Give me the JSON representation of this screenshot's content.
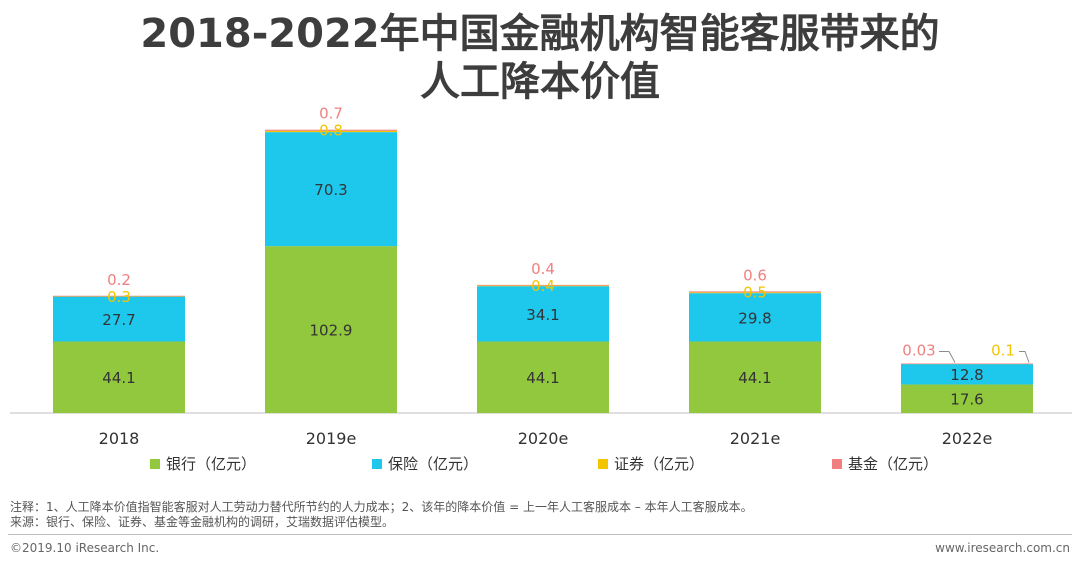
{
  "title": {
    "line1": "2018-2022年中国金融机构智能客服带来的",
    "line2": "人工降本价值"
  },
  "notes": {
    "note": "注释：1、人工降本价值指智能客服对人工劳动力替代所节约的人力成本；2、该年的降本价值 = 上一年人工客服成本 – 本年人工客服成本。",
    "source": "来源：银行、保险、证券、基金等金融机构的调研，艾瑞数据评估模型。"
  },
  "footer": {
    "copyright": "©2019.10 iResearch Inc.",
    "website": "www.iresearch.com.cn"
  },
  "chart_data": {
    "type": "bar",
    "stacked": true,
    "categories": [
      "2018",
      "2019e",
      "2020e",
      "2021e",
      "2022e"
    ],
    "series": [
      {
        "name": "银行（亿元）",
        "color": "#92c83e",
        "values": [
          44.1,
          102.9,
          44.1,
          44.1,
          17.6
        ],
        "labels": [
          "44.1",
          "102.9",
          "44.1",
          "44.1",
          "17.6"
        ]
      },
      {
        "name": "保险（亿元）",
        "color": "#1ec8ed",
        "values": [
          27.7,
          70.3,
          34.1,
          29.8,
          12.8
        ],
        "labels": [
          "27.7",
          "70.3",
          "34.1",
          "29.8",
          "12.8"
        ]
      },
      {
        "name": "证券（亿元）",
        "color": "#f5c400",
        "values": [
          0.3,
          0.8,
          0.4,
          0.5,
          0.1
        ],
        "labels": [
          "0.3",
          "0.8",
          "0.4",
          "0.5",
          "0.1"
        ]
      },
      {
        "name": "基金（亿元）",
        "color": "#f08080",
        "values": [
          0.2,
          0.7,
          0.4,
          0.6,
          0.03
        ],
        "labels": [
          "0.2",
          "0.7",
          "0.4",
          "0.6",
          "0.03"
        ]
      }
    ],
    "ylim": [
      0,
      185
    ],
    "grid": false,
    "legend_position": "bottom",
    "label_colors": {
      "inside": "#333333",
      "securities": "#f5c400",
      "fund": "#f08080"
    },
    "axis_color": "#bfbfbf"
  }
}
